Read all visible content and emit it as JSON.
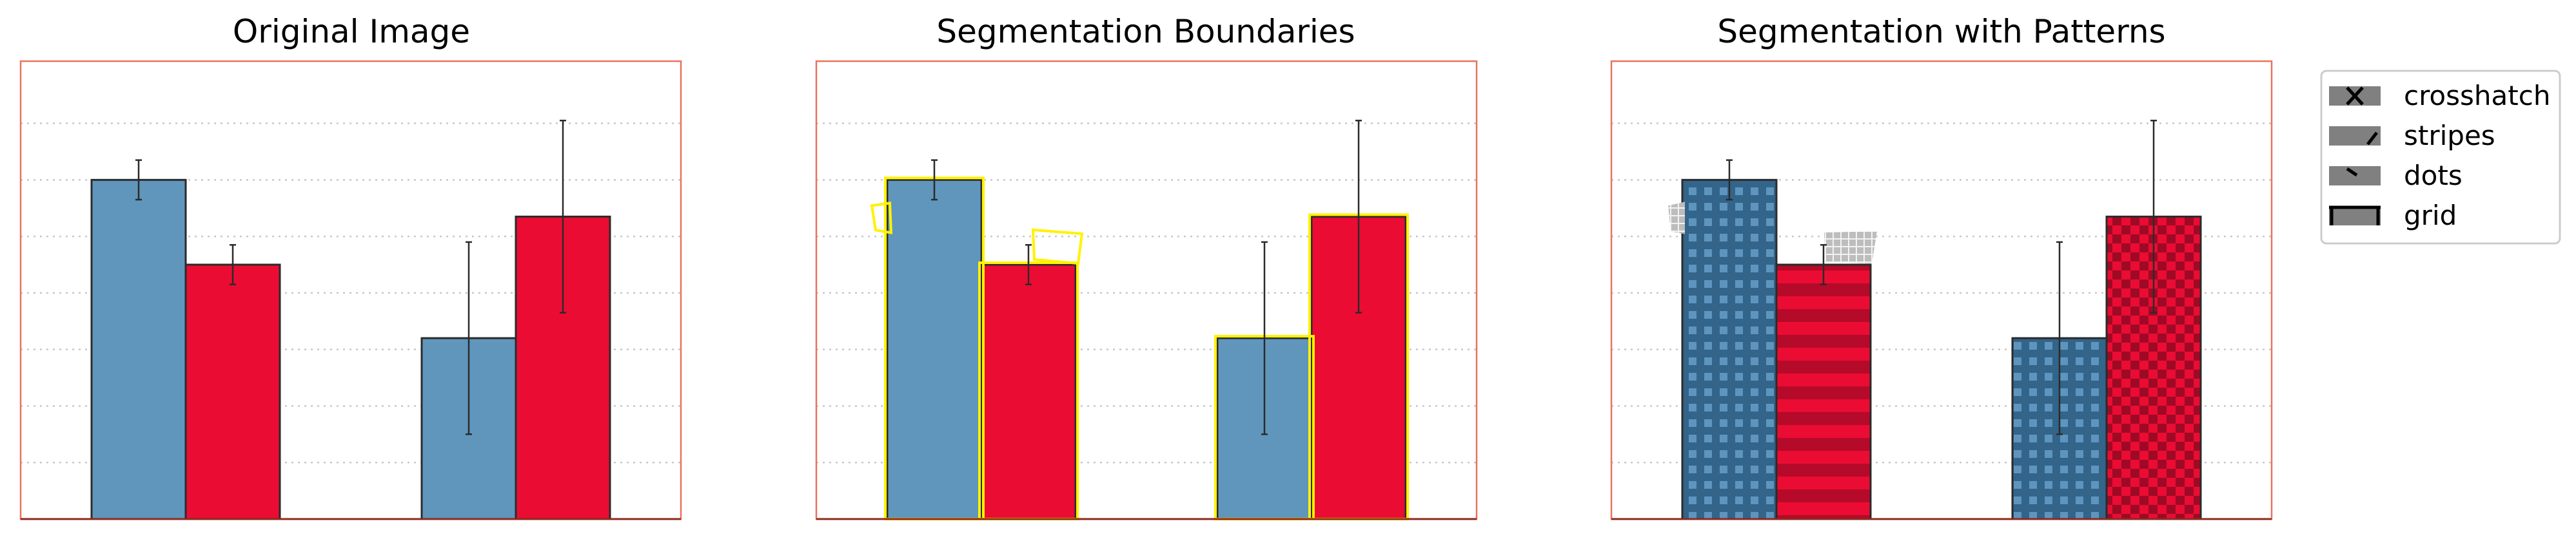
{
  "panels": [
    {
      "title": "Original Image"
    },
    {
      "title": "Segmentation Boundaries"
    },
    {
      "title": "Segmentation with Patterns"
    }
  ],
  "legend": [
    {
      "label": "crosshatch",
      "icon": "crosshatch-icon"
    },
    {
      "label": "stripes",
      "icon": "stripes-icon"
    },
    {
      "label": "dots",
      "icon": "dots-icon"
    },
    {
      "label": "grid",
      "icon": "grid-icon"
    }
  ],
  "colors": {
    "series_a": "#6096BC",
    "series_b": "#EB0C33",
    "frame": "#E8735E",
    "boundary": "#FFF200",
    "grid": "#C8C8C8",
    "legend_swatch": "#808080"
  },
  "chart_data": {
    "type": "bar",
    "categories": [
      "",
      ""
    ],
    "series": [
      {
        "values": [
          0.6,
          0.32
        ],
        "errors": [
          0.035,
          0.17
        ],
        "patterns": [
          "grid",
          "grid"
        ]
      },
      {
        "values": [
          0.45,
          0.535
        ],
        "errors": [
          0.035,
          0.17
        ],
        "patterns": [
          "stripes",
          "checker"
        ]
      }
    ],
    "ylim": [
      0,
      0.81
    ],
    "grid": "horizontal-dotted",
    "ticks_visible": false,
    "legend_position": "right"
  }
}
